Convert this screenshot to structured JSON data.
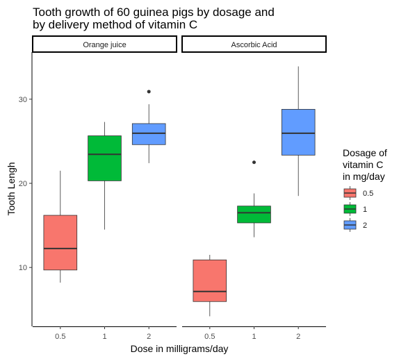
{
  "chart_data": {
    "type": "boxplot",
    "title_lines": [
      "Tooth growth of 60 guinea pigs by dosage and",
      "by delivery method of vitamin C"
    ],
    "xlabel": "Dose in milligrams/day",
    "ylabel": "Tooth Lengh",
    "ylim": [
      3,
      35.6
    ],
    "yticks": [
      10,
      20,
      30
    ],
    "categories": [
      "0.5",
      "1",
      "2"
    ],
    "grid": false,
    "legend": {
      "title_lines": [
        "Dosage of",
        "vitamin C",
        "in mg/day"
      ],
      "position": "right",
      "entries": [
        "0.5",
        "1",
        "2"
      ]
    },
    "series_colors": {
      "0.5": "#f8766d",
      "1": "#00ba38",
      "2": "#619cff"
    },
    "panels": [
      {
        "label": "Orange juice",
        "boxes": [
          {
            "dose": "0.5",
            "whisker_low": 8.2,
            "q1": 9.7,
            "median": 12.25,
            "q3": 16.2,
            "whisker_high": 21.5,
            "outliers": []
          },
          {
            "dose": "1",
            "whisker_low": 14.5,
            "q1": 20.3,
            "median": 23.45,
            "q3": 25.65,
            "whisker_high": 27.3,
            "outliers": []
          },
          {
            "dose": "2",
            "whisker_low": 22.4,
            "q1": 24.6,
            "median": 25.95,
            "q3": 27.1,
            "whisker_high": 29.4,
            "outliers": [
              30.9
            ]
          }
        ]
      },
      {
        "label": "Ascorbic Acid",
        "boxes": [
          {
            "dose": "0.5",
            "whisker_low": 4.2,
            "q1": 5.95,
            "median": 7.15,
            "q3": 10.9,
            "whisker_high": 11.5,
            "outliers": []
          },
          {
            "dose": "1",
            "whisker_low": 13.6,
            "q1": 15.3,
            "median": 16.5,
            "q3": 17.3,
            "whisker_high": 18.8,
            "outliers": [
              22.5
            ]
          },
          {
            "dose": "2",
            "whisker_low": 18.5,
            "q1": 23.35,
            "median": 25.95,
            "q3": 28.8,
            "whisker_high": 33.9,
            "outliers": []
          }
        ]
      }
    ]
  }
}
